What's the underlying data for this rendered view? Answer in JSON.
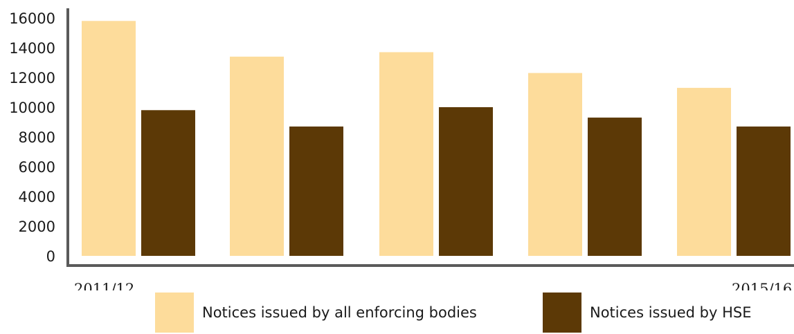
{
  "chart_data": {
    "type": "bar",
    "categories": [
      "2011/12",
      "",
      "",
      "",
      "2015/16"
    ],
    "series": [
      {
        "name": "Notices issued by all enforcing bodies",
        "color": "#fddc9b",
        "values": [
          15800,
          13400,
          13700,
          12300,
          11300
        ]
      },
      {
        "name": "Notices issued by HSE",
        "color": "#5c3906",
        "values": [
          9800,
          8700,
          10000,
          9300,
          8700
        ]
      }
    ],
    "yticks": [
      0,
      2000,
      4000,
      6000,
      8000,
      10000,
      12000,
      14000,
      16000
    ],
    "ylim": [
      0,
      16000
    ],
    "title": "",
    "xlabel": "",
    "ylabel": "",
    "grid": false,
    "legend_position": "bottom",
    "axis_color": "#5a5a5a"
  }
}
